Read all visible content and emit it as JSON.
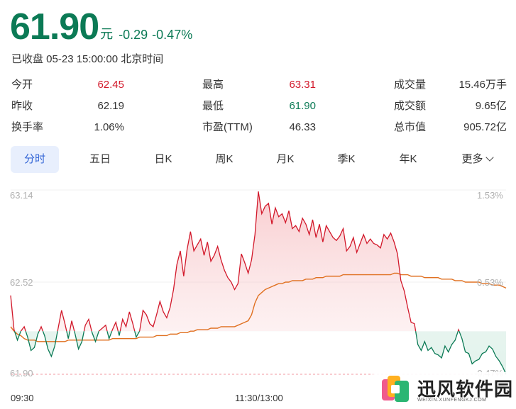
{
  "quote": {
    "price": "61.90",
    "unit": "元",
    "change": "-0.29",
    "change_pct": "-0.47%",
    "status": "已收盘 05-23 15:00:00 北京时间"
  },
  "stats": {
    "open": {
      "label": "今开",
      "value": "62.45"
    },
    "prev_close": {
      "label": "昨收",
      "value": "62.19"
    },
    "turnover_rate": {
      "label": "换手率",
      "value": "1.06%"
    },
    "high": {
      "label": "最高",
      "value": "63.31"
    },
    "low": {
      "label": "最低",
      "value": "61.90"
    },
    "pe_ttm": {
      "label": "市盈(TTM)",
      "value": "46.33"
    },
    "volume": {
      "label": "成交量",
      "value": "15.46万手"
    },
    "amount": {
      "label": "成交额",
      "value": "9.65亿"
    },
    "market_cap": {
      "label": "总市值",
      "value": "905.72亿"
    }
  },
  "tabs": [
    "分时",
    "五日",
    "日K",
    "周K",
    "月K",
    "季K",
    "年K",
    "更多"
  ],
  "active_tab": "分时",
  "colors": {
    "up": "#d2182a",
    "down": "#0b7a55",
    "avg": "#e07020",
    "accent": "#3466d6"
  },
  "watermark": {
    "title": "迅风软件园",
    "subtitle": "WEIXIN.XUNFENGKJ.COM"
  },
  "chart_data": {
    "type": "line",
    "y_labels_left": [
      "63.14",
      "62.52",
      "61.90"
    ],
    "y_labels_right": [
      "1.53%",
      "0.53%",
      "-0.47%"
    ],
    "x_labels": [
      "09:30",
      "11:30/13:00"
    ],
    "baseline": 62.19,
    "ylim": [
      61.9,
      63.14
    ],
    "series": [
      {
        "name": "price",
        "values": [
          62.43,
          62.2,
          62.13,
          62.19,
          62.22,
          62.15,
          62.06,
          62.08,
          62.17,
          62.22,
          62.16,
          62.07,
          62.02,
          62.09,
          62.21,
          62.33,
          62.24,
          62.14,
          62.26,
          62.17,
          62.07,
          62.12,
          62.23,
          62.27,
          62.18,
          62.12,
          62.19,
          62.21,
          62.23,
          62.14,
          62.2,
          62.25,
          62.16,
          62.27,
          62.22,
          62.32,
          62.24,
          62.15,
          62.19,
          62.33,
          62.3,
          62.24,
          62.22,
          62.3,
          62.39,
          62.32,
          62.28,
          62.35,
          62.47,
          62.64,
          62.73,
          62.56,
          62.74,
          62.86,
          62.73,
          62.77,
          62.81,
          62.7,
          62.79,
          62.66,
          62.7,
          62.76,
          62.67,
          62.6,
          62.55,
          62.52,
          62.47,
          62.51,
          62.71,
          62.65,
          62.58,
          62.67,
          62.84,
          63.13,
          62.98,
          63.03,
          63.05,
          62.91,
          63.02,
          62.96,
          62.98,
          62.92,
          63.0,
          62.88,
          62.9,
          62.86,
          62.95,
          62.91,
          62.84,
          62.94,
          62.82,
          62.91,
          62.79,
          62.9,
          62.86,
          62.82,
          62.8,
          62.83,
          62.88,
          62.73,
          62.76,
          62.82,
          62.72,
          62.78,
          62.84,
          62.78,
          62.81,
          62.78,
          62.77,
          62.75,
          62.84,
          62.81,
          62.85,
          62.79,
          62.71,
          62.53,
          62.46,
          62.35,
          62.25,
          62.24,
          62.1,
          62.06,
          62.12,
          62.06,
          62.08,
          62.04,
          62.03,
          62.01,
          62.09,
          62.05,
          62.1,
          62.13,
          62.2,
          62.14,
          62.05,
          62.04,
          61.97,
          61.99,
          62.0,
          62.04,
          62.05,
          62.09,
          62.07,
          62.02,
          61.99,
          61.95,
          61.9
        ]
      },
      {
        "name": "avg",
        "values": [
          62.22,
          62.19,
          62.17,
          62.16,
          62.14,
          62.13,
          62.13,
          62.13,
          62.12,
          62.12,
          62.12,
          62.12,
          62.12,
          62.12,
          62.12,
          62.12,
          62.12,
          62.13,
          62.13,
          62.13,
          62.13,
          62.13,
          62.13,
          62.13,
          62.13,
          62.13,
          62.13,
          62.13,
          62.13,
          62.13,
          62.14,
          62.14,
          62.14,
          62.14,
          62.14,
          62.14,
          62.14,
          62.14,
          62.15,
          62.15,
          62.15,
          62.15,
          62.15,
          62.16,
          62.16,
          62.16,
          62.16,
          62.17,
          62.17,
          62.17,
          62.18,
          62.18,
          62.18,
          62.19,
          62.19,
          62.2,
          62.2,
          62.2,
          62.2,
          62.21,
          62.21,
          62.21,
          62.22,
          62.22,
          62.22,
          62.22,
          62.22,
          62.23,
          62.24,
          62.25,
          62.26,
          62.3,
          62.38,
          62.43,
          62.45,
          62.47,
          62.48,
          62.49,
          62.5,
          62.51,
          62.51,
          62.52,
          62.52,
          62.53,
          62.53,
          62.53,
          62.53,
          62.54,
          62.54,
          62.54,
          62.55,
          62.55,
          62.55,
          62.56,
          62.56,
          62.56,
          62.56,
          62.56,
          62.57,
          62.57,
          62.57,
          62.57,
          62.57,
          62.57,
          62.57,
          62.57,
          62.57,
          62.57,
          62.57,
          62.57,
          62.57,
          62.57,
          62.57,
          62.58,
          62.58,
          62.57,
          62.57,
          62.57,
          62.56,
          62.56,
          62.56,
          62.56,
          62.55,
          62.55,
          62.55,
          62.55,
          62.55,
          62.54,
          62.54,
          62.54,
          62.54,
          62.53,
          62.53,
          62.53,
          62.52,
          62.52,
          62.52,
          62.52,
          62.52,
          62.51,
          62.51,
          62.51,
          62.5,
          62.5,
          62.5,
          62.49,
          62.48
        ]
      }
    ],
    "grid": true
  }
}
